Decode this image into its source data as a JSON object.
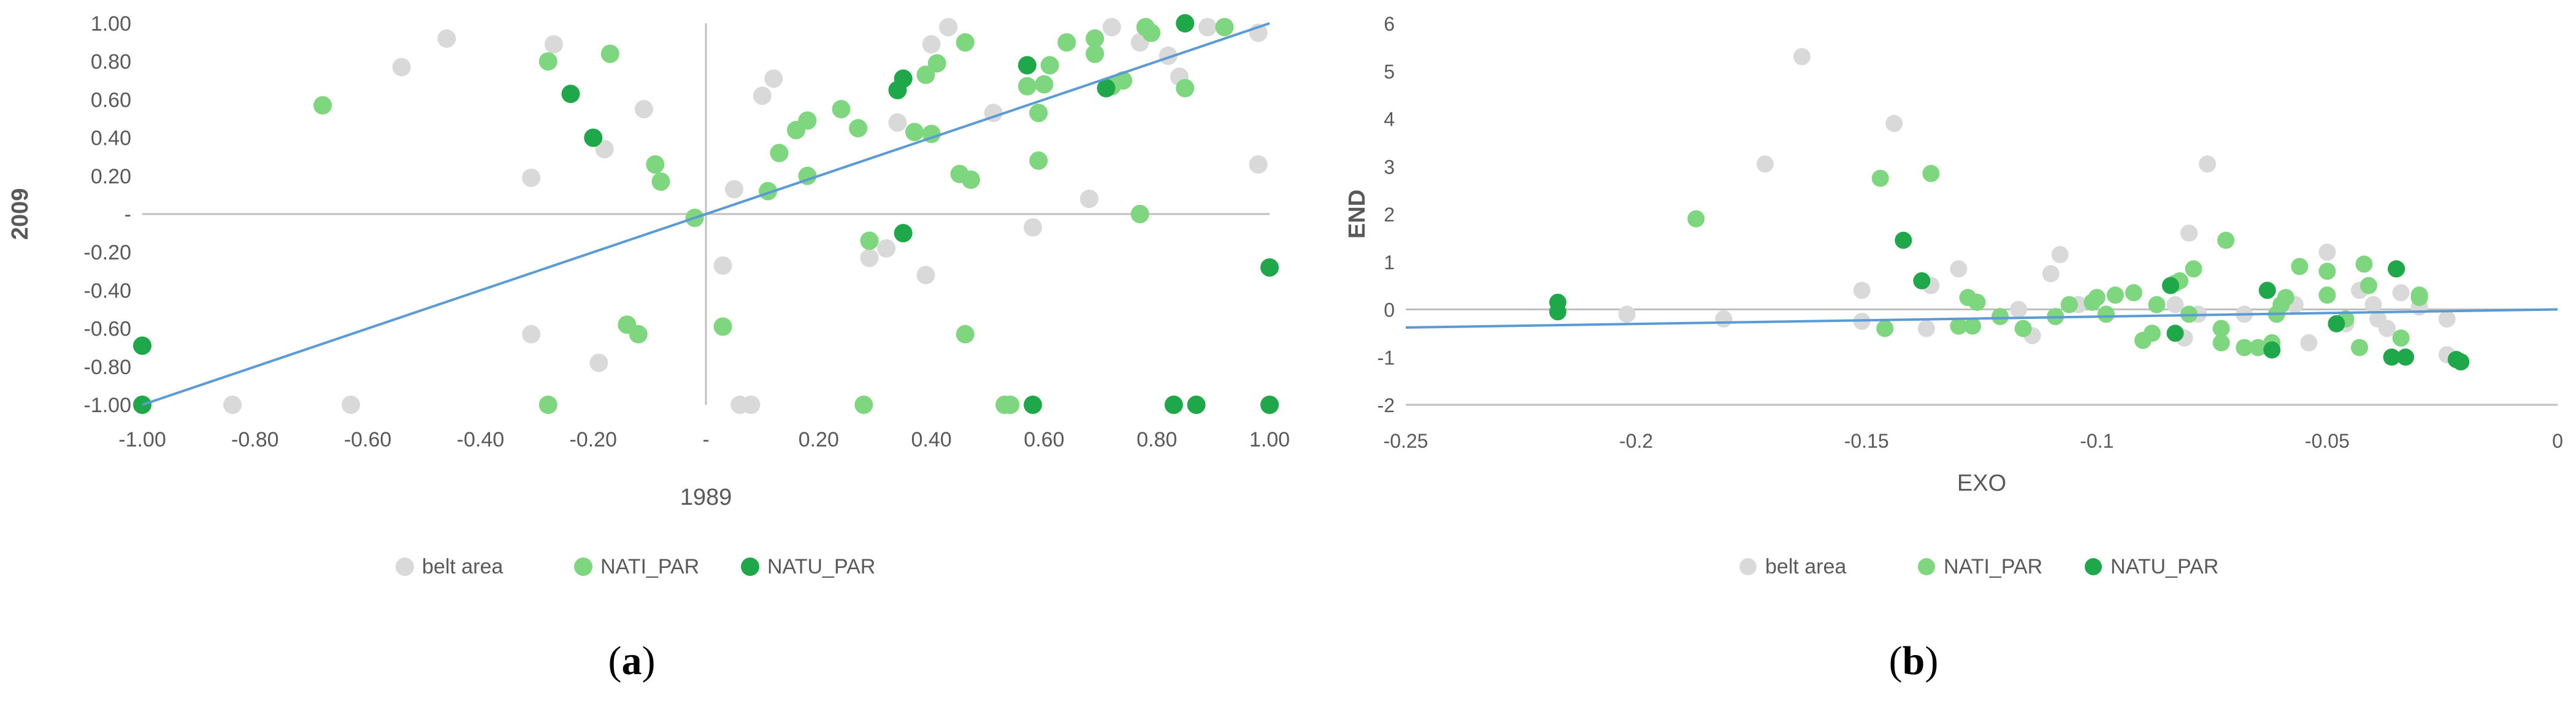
{
  "figure": {
    "caption_a": {
      "open": "(",
      "letter": "a",
      "close": ")"
    },
    "caption_b": {
      "open": "(",
      "letter": "b",
      "close": ")"
    }
  },
  "chart_data": [
    {
      "type": "scatter",
      "title": "",
      "xlabel": "1989",
      "ylabel": "2009",
      "xlim": [
        -1.0,
        1.0
      ],
      "ylim": [
        -1.0,
        1.0
      ],
      "x_ticks": [
        -1.0,
        -0.8,
        -0.6,
        -0.4,
        -0.2,
        0.0,
        0.2,
        0.4,
        0.6,
        0.8,
        1.0
      ],
      "x_tick_labels": [
        "-1.00",
        "-0.80",
        "-0.60",
        "-0.40",
        "-0.20",
        "-",
        "0.20",
        "0.40",
        "0.60",
        "0.80",
        "1.00"
      ],
      "y_ticks": [
        1.0,
        0.8,
        0.6,
        0.4,
        0.2,
        0.0,
        -0.2,
        -0.4,
        -0.6,
        -0.8,
        -1.0
      ],
      "y_tick_labels": [
        "1.00",
        "0.80",
        "0.60",
        "0.40",
        "0.20",
        "-",
        "-0.20",
        "-0.40",
        "-0.60",
        "-0.80",
        "-1.00"
      ],
      "grid": "axes at zero only",
      "legend_position": "bottom",
      "trendline": {
        "x": [
          -1.0,
          1.0
        ],
        "y": [
          -1.0,
          1.0
        ],
        "color": "#5b9bd5"
      },
      "series": [
        {
          "name": "belt area",
          "color": "#d9d9d9",
          "points": [
            [
              -0.46,
              0.92
            ],
            [
              -0.54,
              0.77
            ],
            [
              -0.27,
              0.89
            ],
            [
              -0.18,
              0.34
            ],
            [
              -0.11,
              0.55
            ],
            [
              -0.31,
              0.19
            ],
            [
              -0.31,
              -0.63
            ],
            [
              -0.19,
              -0.78
            ],
            [
              -0.84,
              -1.0
            ],
            [
              -0.63,
              -1.0
            ],
            [
              0.1,
              0.62
            ],
            [
              0.12,
              0.71
            ],
            [
              0.05,
              0.13
            ],
            [
              0.03,
              -0.27
            ],
            [
              0.06,
              -1.0
            ],
            [
              0.08,
              -1.0
            ],
            [
              0.29,
              -0.23
            ],
            [
              0.32,
              -0.18
            ],
            [
              0.34,
              0.48
            ],
            [
              0.39,
              -0.32
            ],
            [
              0.4,
              0.89
            ],
            [
              0.43,
              0.98
            ],
            [
              0.51,
              0.53
            ],
            [
              0.58,
              -0.07
            ],
            [
              0.68,
              0.08
            ],
            [
              0.72,
              0.98
            ],
            [
              0.77,
              0.9
            ],
            [
              0.82,
              0.83
            ],
            [
              0.84,
              0.72
            ],
            [
              0.89,
              0.98
            ],
            [
              0.98,
              0.26
            ],
            [
              0.98,
              0.95
            ],
            [
              1.0,
              -1.0
            ]
          ]
        },
        {
          "name": "NATI_PAR",
          "color": "#7ed67e",
          "points": [
            [
              -0.68,
              0.57
            ],
            [
              -0.28,
              0.8
            ],
            [
              -0.17,
              0.84
            ],
            [
              -0.09,
              0.26
            ],
            [
              -0.08,
              0.17
            ],
            [
              -0.12,
              -0.63
            ],
            [
              -0.14,
              -0.58
            ],
            [
              -0.28,
              -1.0
            ],
            [
              -0.02,
              -0.02
            ],
            [
              0.03,
              -0.59
            ],
            [
              0.11,
              0.12
            ],
            [
              0.13,
              0.32
            ],
            [
              0.16,
              0.44
            ],
            [
              0.18,
              0.49
            ],
            [
              0.18,
              0.2
            ],
            [
              0.24,
              0.55
            ],
            [
              0.27,
              0.45
            ],
            [
              0.29,
              -0.14
            ],
            [
              0.28,
              -1.0
            ],
            [
              0.37,
              0.43
            ],
            [
              0.39,
              0.73
            ],
            [
              0.4,
              0.42
            ],
            [
              0.41,
              0.79
            ],
            [
              0.46,
              0.9
            ],
            [
              0.45,
              0.21
            ],
            [
              0.47,
              0.18
            ],
            [
              0.46,
              -0.63
            ],
            [
              0.53,
              -1.0
            ],
            [
              0.54,
              -1.0
            ],
            [
              0.57,
              0.67
            ],
            [
              0.59,
              0.53
            ],
            [
              0.59,
              0.28
            ],
            [
              0.6,
              0.68
            ],
            [
              0.61,
              0.78
            ],
            [
              0.64,
              0.9
            ],
            [
              0.69,
              0.92
            ],
            [
              0.69,
              0.84
            ],
            [
              0.72,
              0.67
            ],
            [
              0.74,
              0.7
            ],
            [
              0.77,
              -0.0
            ],
            [
              0.78,
              0.98
            ],
            [
              0.79,
              0.95
            ],
            [
              0.85,
              0.66
            ],
            [
              0.92,
              0.98
            ]
          ]
        },
        {
          "name": "NATU_PAR",
          "color": "#1ea84a",
          "points": [
            [
              -1.0,
              -0.69
            ],
            [
              -1.0,
              -1.0
            ],
            [
              -0.24,
              0.63
            ],
            [
              -0.2,
              0.4
            ],
            [
              0.34,
              0.65
            ],
            [
              0.35,
              0.71
            ],
            [
              0.35,
              -0.1
            ],
            [
              0.57,
              0.78
            ],
            [
              0.58,
              -1.0
            ],
            [
              0.71,
              0.66
            ],
            [
              0.83,
              -1.0
            ],
            [
              0.85,
              1.0
            ],
            [
              0.87,
              -1.0
            ],
            [
              1.0,
              -0.28
            ],
            [
              1.0,
              -1.0
            ]
          ]
        }
      ]
    },
    {
      "type": "scatter",
      "title": "",
      "xlabel": "EXO",
      "ylabel": "END",
      "xlim": [
        -0.25,
        0.0
      ],
      "ylim": [
        -2,
        6
      ],
      "x_ticks": [
        -0.25,
        -0.2,
        -0.15,
        -0.1,
        -0.05,
        0.0
      ],
      "x_tick_labels": [
        "-0.25",
        "-0.2",
        "-0.15",
        "-0.1",
        "-0.05",
        "0"
      ],
      "y_ticks": [
        6,
        5,
        4,
        3,
        2,
        1,
        0,
        -1,
        -2
      ],
      "y_tick_labels": [
        "6",
        "5",
        "4",
        "3",
        "2",
        "1",
        "0",
        "-1",
        "-2"
      ],
      "grid": "zero line only",
      "legend_position": "bottom",
      "trendline": {
        "x": [
          -0.25,
          0.0
        ],
        "y": [
          -0.38,
          0.0
        ],
        "color": "#5b9bd5"
      },
      "series": [
        {
          "name": "belt area",
          "color": "#d9d9d9",
          "points": [
            [
              -0.202,
              -0.1
            ],
            [
              -0.181,
              -0.2
            ],
            [
              -0.172,
              3.05
            ],
            [
              -0.164,
              5.3
            ],
            [
              -0.151,
              0.4
            ],
            [
              -0.151,
              -0.25
            ],
            [
              -0.144,
              3.9
            ],
            [
              -0.137,
              -0.4
            ],
            [
              -0.136,
              0.5
            ],
            [
              -0.13,
              0.85
            ],
            [
              -0.117,
              0.0
            ],
            [
              -0.114,
              -0.55
            ],
            [
              -0.11,
              0.75
            ],
            [
              -0.108,
              1.15
            ],
            [
              -0.104,
              0.1
            ],
            [
              -0.083,
              0.1
            ],
            [
              -0.081,
              -0.6
            ],
            [
              -0.08,
              1.6
            ],
            [
              -0.078,
              -0.1
            ],
            [
              -0.076,
              3.05
            ],
            [
              -0.068,
              -0.1
            ],
            [
              -0.057,
              0.1
            ],
            [
              -0.054,
              -0.7
            ],
            [
              -0.05,
              1.2
            ],
            [
              -0.046,
              -0.3
            ],
            [
              -0.043,
              0.4
            ],
            [
              -0.04,
              0.1
            ],
            [
              -0.039,
              -0.2
            ],
            [
              -0.037,
              -0.4
            ],
            [
              -0.034,
              0.35
            ],
            [
              -0.03,
              0.05
            ],
            [
              -0.024,
              -0.2
            ],
            [
              -0.024,
              -0.95
            ],
            [
              -0.022,
              -1.05
            ]
          ]
        },
        {
          "name": "NATI_PAR",
          "color": "#7ed67e",
          "points": [
            [
              -0.187,
              1.9
            ],
            [
              -0.147,
              2.75
            ],
            [
              -0.146,
              -0.4
            ],
            [
              -0.136,
              2.85
            ],
            [
              -0.128,
              0.25
            ],
            [
              -0.126,
              0.15
            ],
            [
              -0.13,
              -0.35
            ],
            [
              -0.127,
              -0.35
            ],
            [
              -0.121,
              -0.15
            ],
            [
              -0.116,
              -0.4
            ],
            [
              -0.109,
              -0.15
            ],
            [
              -0.106,
              0.1
            ],
            [
              -0.101,
              0.15
            ],
            [
              -0.1,
              0.25
            ],
            [
              -0.098,
              -0.1
            ],
            [
              -0.096,
              0.3
            ],
            [
              -0.092,
              0.35
            ],
            [
              -0.09,
              -0.65
            ],
            [
              -0.088,
              -0.5
            ],
            [
              -0.087,
              0.1
            ],
            [
              -0.083,
              0.55
            ],
            [
              -0.082,
              0.6
            ],
            [
              -0.08,
              -0.1
            ],
            [
              -0.079,
              0.85
            ],
            [
              -0.073,
              -0.4
            ],
            [
              -0.073,
              -0.7
            ],
            [
              -0.072,
              1.45
            ],
            [
              -0.068,
              -0.8
            ],
            [
              -0.065,
              -0.8
            ],
            [
              -0.062,
              -0.7
            ],
            [
              -0.061,
              -0.1
            ],
            [
              -0.06,
              0.1
            ],
            [
              -0.059,
              0.25
            ],
            [
              -0.056,
              0.9
            ],
            [
              -0.05,
              0.8
            ],
            [
              -0.05,
              0.3
            ],
            [
              -0.046,
              -0.2
            ],
            [
              -0.043,
              -0.8
            ],
            [
              -0.042,
              0.95
            ],
            [
              -0.041,
              0.5
            ],
            [
              -0.035,
              0.85
            ],
            [
              -0.034,
              -0.6
            ],
            [
              -0.03,
              0.3
            ],
            [
              -0.03,
              0.25
            ]
          ]
        },
        {
          "name": "NATU_PAR",
          "color": "#1ea84a",
          "points": [
            [
              -0.217,
              0.15
            ],
            [
              -0.217,
              -0.05
            ],
            [
              -0.142,
              1.45
            ],
            [
              -0.138,
              0.6
            ],
            [
              -0.084,
              0.5
            ],
            [
              -0.083,
              -0.5
            ],
            [
              -0.063,
              0.4
            ],
            [
              -0.062,
              -0.85
            ],
            [
              -0.048,
              -0.3
            ],
            [
              -0.036,
              -1.0
            ],
            [
              -0.035,
              0.85
            ],
            [
              -0.033,
              -1.0
            ],
            [
              -0.022,
              -1.05
            ],
            [
              -0.021,
              -1.1
            ]
          ]
        }
      ]
    }
  ]
}
